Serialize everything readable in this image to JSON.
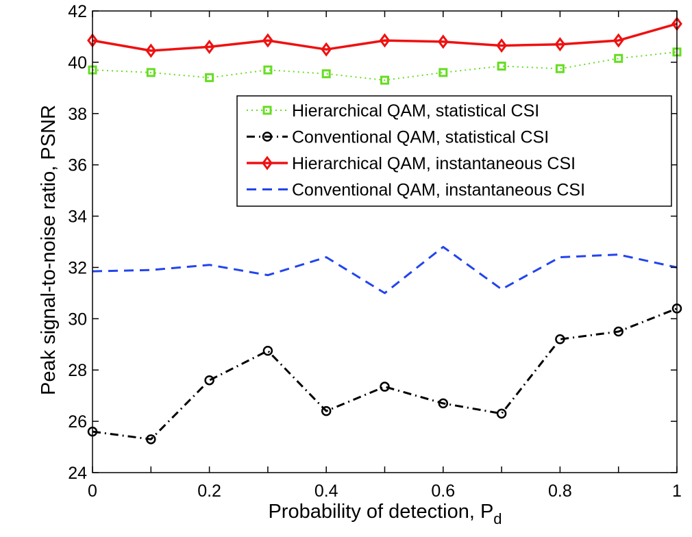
{
  "chart_data": {
    "type": "line",
    "title": "",
    "xlabel": "Probability of detection, P",
    "xlabel_subscript": "d",
    "ylabel": "Peak signal-to-noise ratio, PSNR",
    "xlim": [
      0,
      1
    ],
    "ylim": [
      24,
      42
    ],
    "x_ticks": [
      0,
      0.1,
      0.2,
      0.3,
      0.4,
      0.5,
      0.6,
      0.7,
      0.8,
      0.9,
      1
    ],
    "x_tick_labels": [
      "0",
      "0.2",
      "0.4",
      "0.6",
      "0.8",
      "1"
    ],
    "x_tick_label_values": [
      0,
      0.2,
      0.4,
      0.6,
      0.8,
      1
    ],
    "y_tick_labels": [
      "24",
      "26",
      "28",
      "30",
      "32",
      "34",
      "36",
      "38",
      "40",
      "42"
    ],
    "y_tick_label_values": [
      24,
      26,
      28,
      30,
      32,
      34,
      36,
      38,
      40,
      42
    ],
    "grid": false,
    "legend_position": "upper-right",
    "x": [
      0,
      0.1,
      0.2,
      0.3,
      0.4,
      0.5,
      0.6,
      0.7,
      0.8,
      0.9,
      1
    ],
    "series": [
      {
        "name": "Hierarchical QAM, statistical CSI",
        "color": "#66dd22",
        "line_style": "dotted",
        "marker": "square",
        "values": [
          39.7,
          39.6,
          39.4,
          39.7,
          39.55,
          39.3,
          39.6,
          39.85,
          39.75,
          40.15,
          40.4
        ]
      },
      {
        "name": "Conventional QAM, statistical CSI",
        "color": "#000000",
        "line_style": "dashdot",
        "marker": "circle",
        "values": [
          25.6,
          25.3,
          27.6,
          28.75,
          26.4,
          27.35,
          26.7,
          26.3,
          29.2,
          29.5,
          30.4
        ]
      },
      {
        "name": "Hierarchical QAM, instantaneous CSI",
        "color": "#ee1111",
        "line_style": "solid",
        "marker": "diamond",
        "values": [
          40.85,
          40.45,
          40.6,
          40.85,
          40.5,
          40.85,
          40.8,
          40.65,
          40.7,
          40.85,
          41.5
        ]
      },
      {
        "name": "Conventional QAM, instantaneous CSI",
        "color": "#2244ee",
        "line_style": "dashed",
        "marker": "none",
        "values": [
          31.85,
          31.9,
          32.1,
          31.7,
          32.4,
          31.0,
          32.8,
          31.15,
          32.4,
          32.5,
          32.0
        ]
      }
    ]
  }
}
